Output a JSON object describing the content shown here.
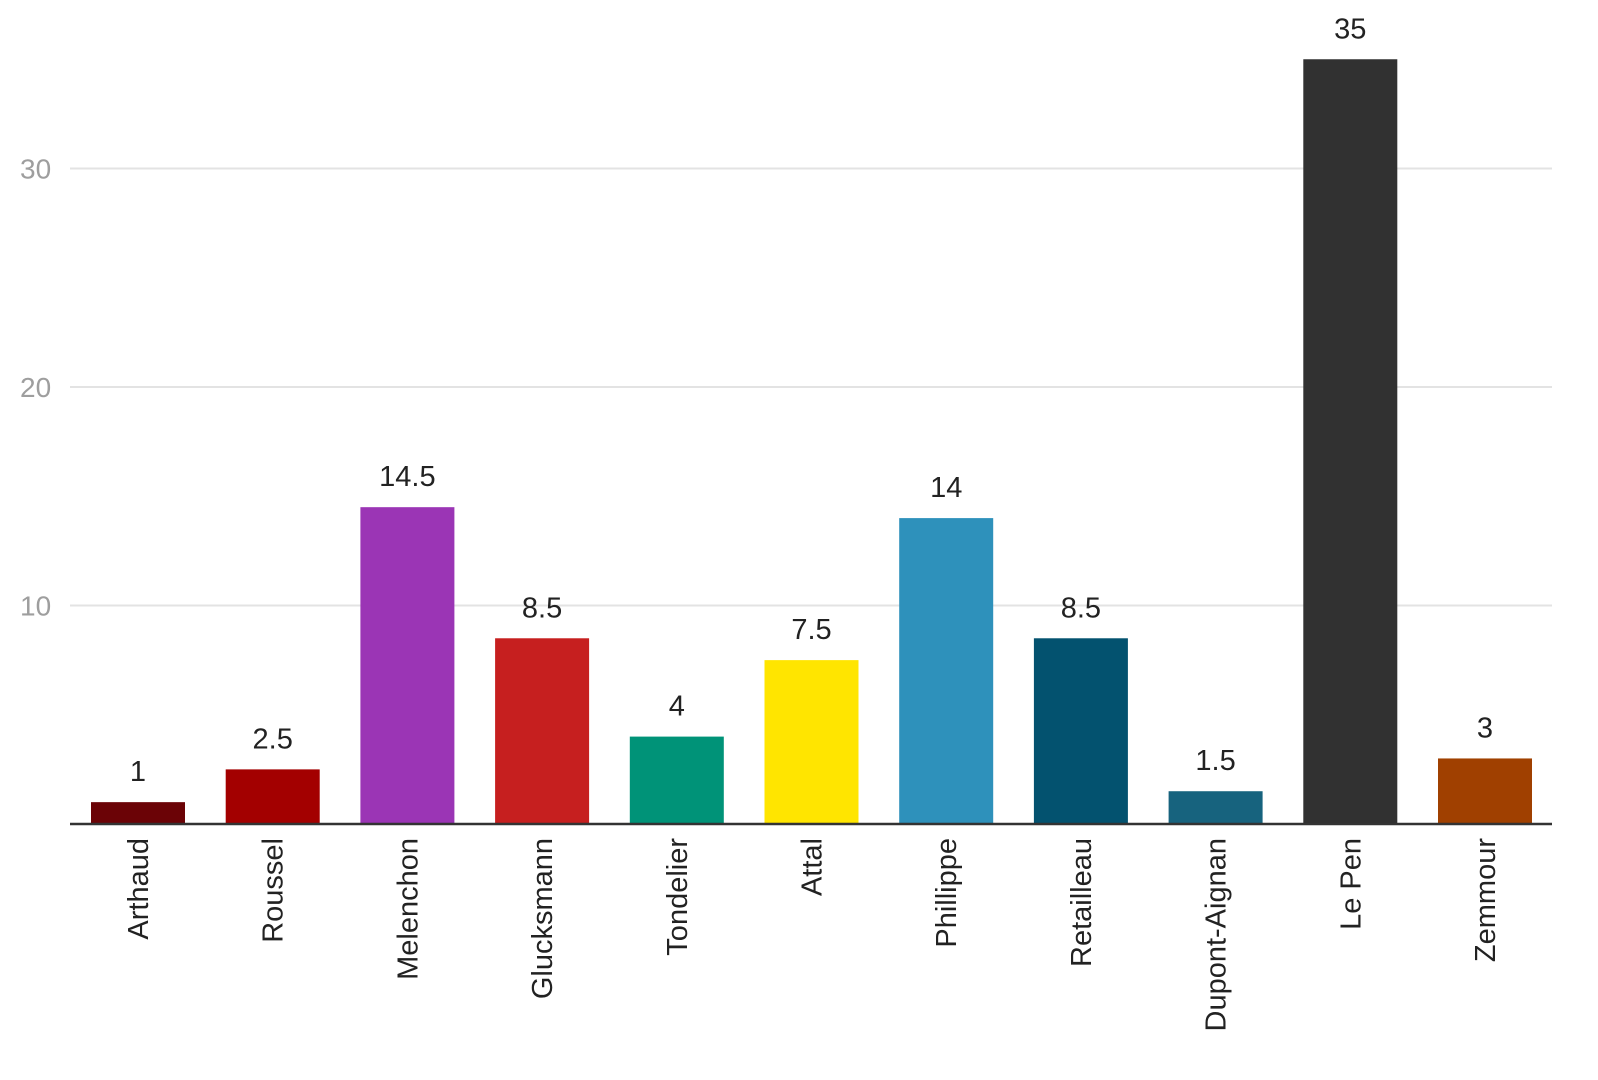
{
  "chart_data": {
    "type": "bar",
    "categories": [
      "Arthaud",
      "Roussel",
      "Melenchon",
      "Glucksmann",
      "Tondelier",
      "Attal",
      "Phillippe",
      "Retailleau",
      "Dupont-Aignan",
      "Le Pen",
      "Zemmour"
    ],
    "values": [
      1,
      2.5,
      14.5,
      8.5,
      4,
      7.5,
      14,
      8.5,
      1.5,
      35,
      3
    ],
    "value_labels": [
      "1",
      "2.5",
      "14.5",
      "8.5",
      "4",
      "7.5",
      "14",
      "8.5",
      "1.5",
      "35",
      "3"
    ],
    "colors": [
      "#6b0306",
      "#a30000",
      "#9b35b5",
      "#c61f1f",
      "#009378",
      "#ffe500",
      "#2e91bb",
      "#03526f",
      "#17637e",
      "#313131",
      "#a04000"
    ],
    "yticks": [
      10,
      20,
      30
    ],
    "ytick_labels": [
      "10",
      "20",
      "30"
    ],
    "ylim": [
      0,
      36
    ],
    "grid": true,
    "title": "",
    "xlabel": "",
    "ylabel": ""
  }
}
